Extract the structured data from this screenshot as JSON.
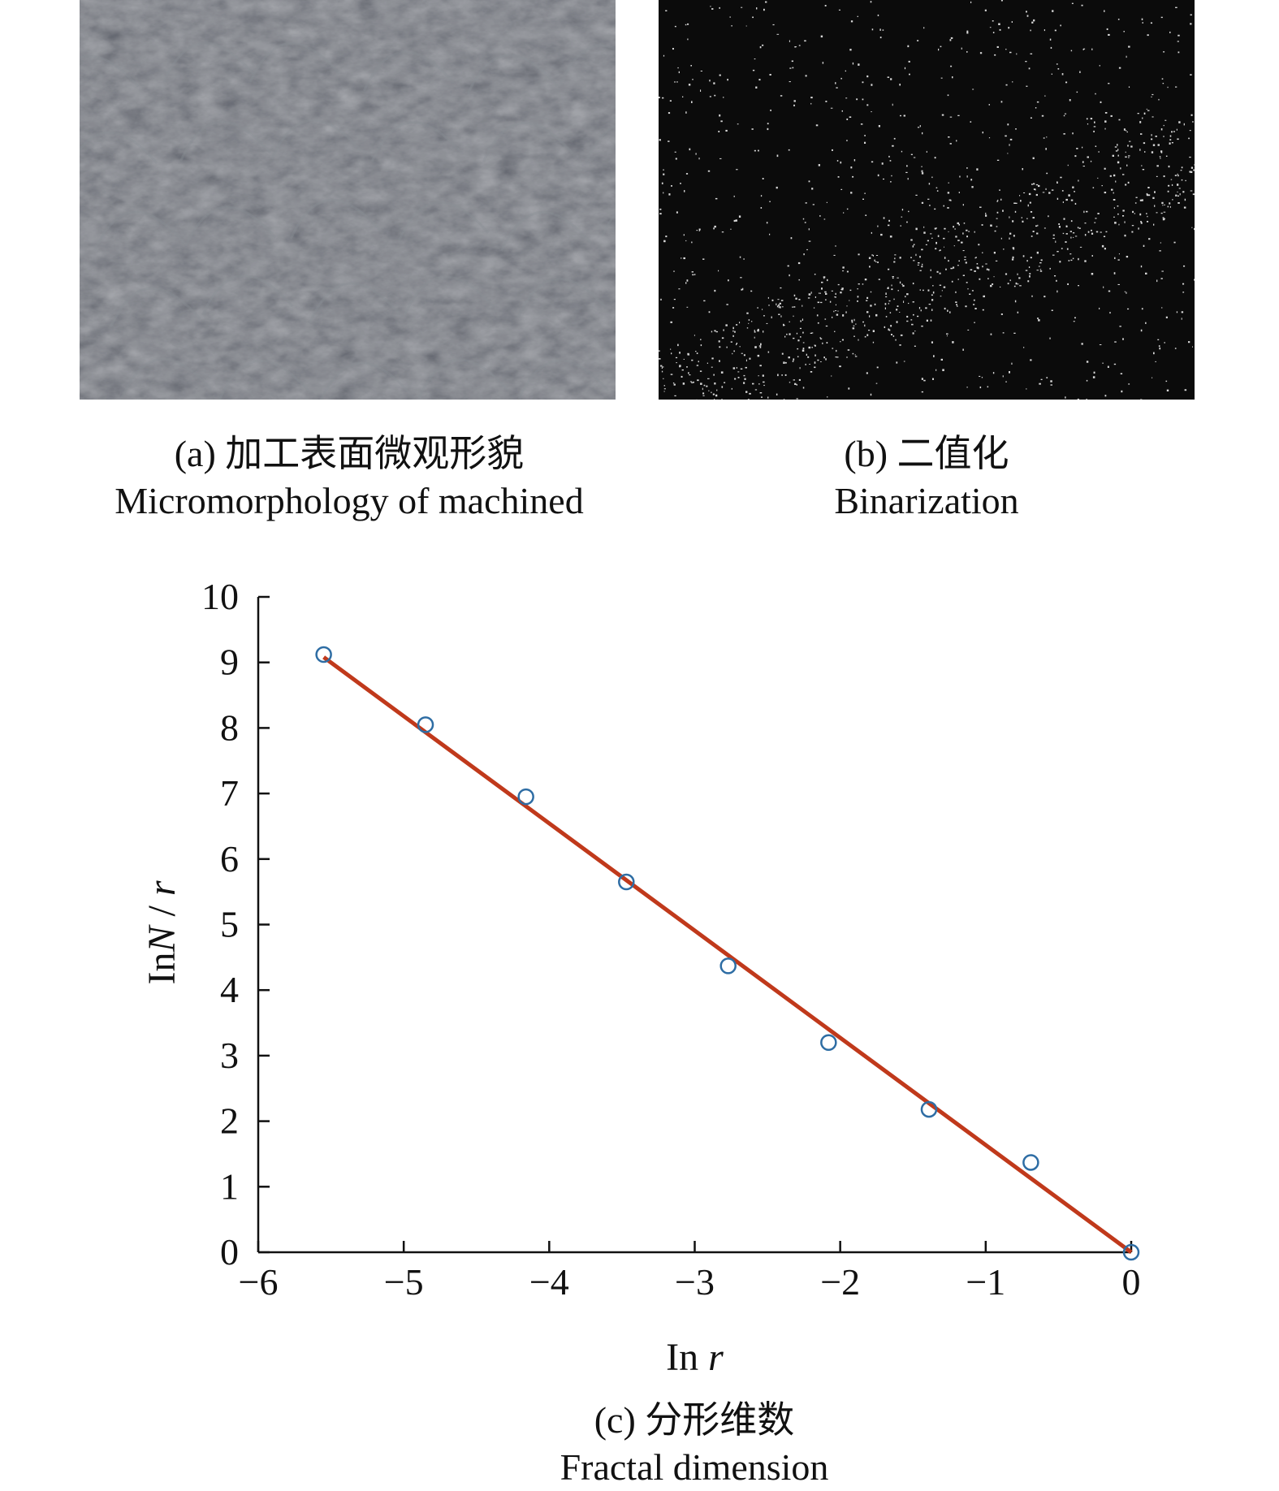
{
  "figure": {
    "panel_a": {
      "caption_cn": "(a) 加工表面微观形貌",
      "caption_en": "Micromorphology of machined"
    },
    "panel_b": {
      "caption_cn": "(b) 二值化",
      "caption_en": "Binarization"
    },
    "panel_c": {
      "caption_cn": "(c) 分形维数",
      "caption_en": "Fractal dimension"
    }
  },
  "colors": {
    "points": "#2e6da4",
    "fit_line": "#c0391b",
    "surface": "#4a4d52",
    "binary_bg": "#0b0b0b"
  },
  "chart_data": {
    "type": "scatter",
    "xlabel": "In r",
    "ylabel": "InN / r",
    "xlim": [
      -6,
      0
    ],
    "ylim": [
      0,
      10
    ],
    "xticks": [
      "−6",
      "−5",
      "−4",
      "−3",
      "−2",
      "−1",
      "0"
    ],
    "yticks": [
      "0",
      "1",
      "2",
      "3",
      "4",
      "5",
      "6",
      "7",
      "8",
      "9",
      "10"
    ],
    "grid": false,
    "series": [
      {
        "kind": "points",
        "marker": "open-circle",
        "x": [
          -5.55,
          -4.85,
          -4.16,
          -3.47,
          -2.77,
          -2.08,
          -1.39,
          -0.69,
          0.0
        ],
        "y": [
          9.12,
          8.05,
          6.95,
          5.65,
          4.37,
          3.2,
          2.18,
          1.37,
          0.0
        ]
      },
      {
        "kind": "fit-line",
        "x": [
          -5.55,
          0.0
        ],
        "y": [
          9.08,
          0.0
        ]
      }
    ]
  }
}
